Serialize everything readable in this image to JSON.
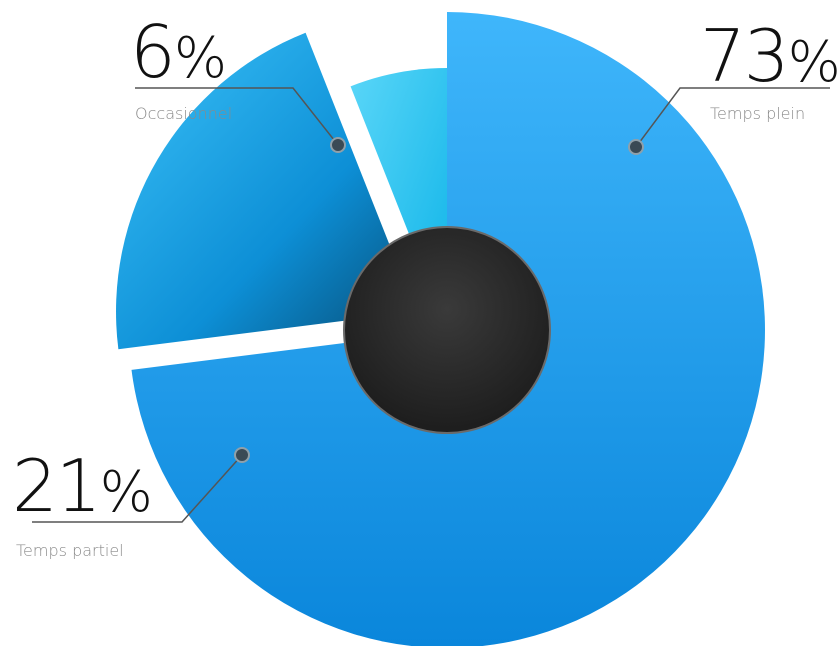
{
  "chart_data": {
    "type": "pie",
    "variant": "exploded-donut",
    "unit": "%",
    "categories": [
      "Temps plein",
      "Temps partiel",
      "Occasionnel"
    ],
    "values": [
      73,
      21,
      6
    ],
    "labels": [
      {
        "percent": "73",
        "sign": "%",
        "category": "Temps plein"
      },
      {
        "percent": "21",
        "sign": "%",
        "category": "Temps partiel"
      },
      {
        "percent": "6",
        "sign": "%",
        "category": "Occasionnel"
      }
    ],
    "colors": {
      "full_time": "#1e9ef0",
      "part_time": "#28b4f2",
      "occasional": "#32cbf4",
      "center": "#2e2e2e",
      "leader": "#555555"
    }
  }
}
